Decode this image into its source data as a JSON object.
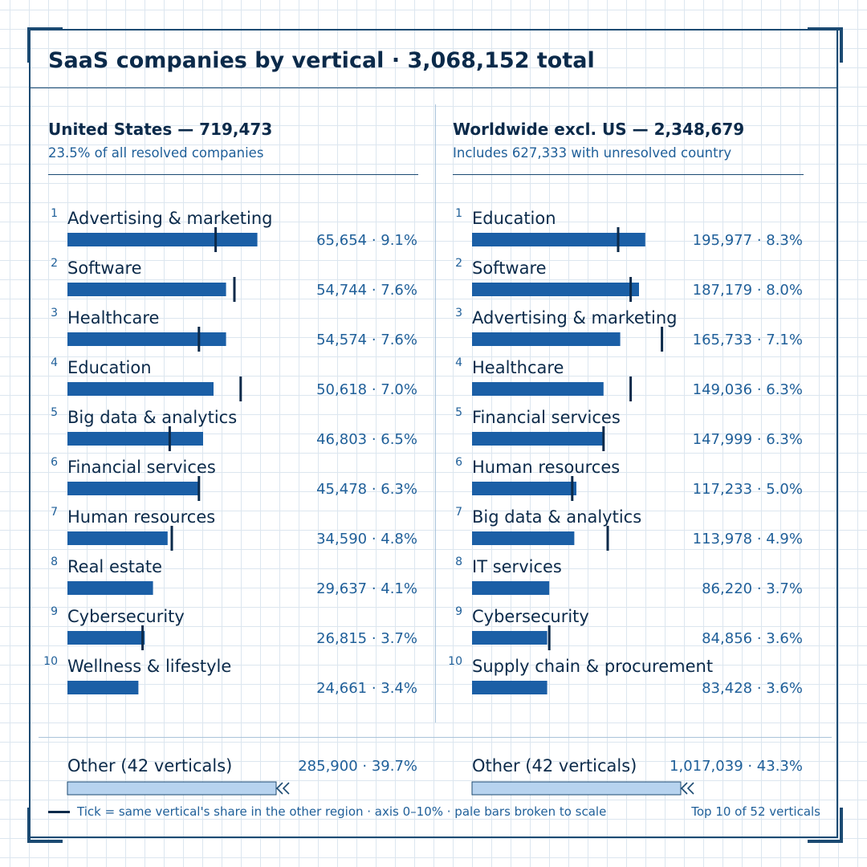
{
  "title": "SaaS companies by vertical · 3,068,152 total",
  "legend": {
    "tick_note": "Tick = same vertical's share in the other region  ·  axis 0–10%  ·  pale bars broken to scale",
    "top_note": "Top 10 of 52 verticals"
  },
  "colors": {
    "bar": "#1b5fa6",
    "other_bar": "#b7d3ef",
    "tick": "#0b2a4a",
    "value_text": "#1f5f99"
  },
  "chart_data": [
    {
      "type": "bar",
      "title": "United States — 719,473",
      "subtitle": "23.5% of all resolved companies",
      "axis_range": [
        0,
        10
      ],
      "ranks": [
        "1",
        "2",
        "3",
        "4",
        "5",
        "6",
        "7",
        "8",
        "9",
        "10"
      ],
      "categories": [
        "Advertising & marketing",
        "Software",
        "Healthcare",
        "Education",
        "Big data & analytics",
        "Financial services",
        "Human resources",
        "Real estate",
        "Cybersecurity",
        "Wellness & lifestyle"
      ],
      "counts": [
        65654,
        54744,
        54574,
        50618,
        46803,
        45478,
        34590,
        29637,
        26815,
        24661
      ],
      "values": [
        9.1,
        7.6,
        7.6,
        7.0,
        6.5,
        6.3,
        4.8,
        4.1,
        3.7,
        3.4
      ],
      "value_labels": [
        "65,654 · 9.1%",
        "54,744 · 7.6%",
        "54,574 · 7.6%",
        "50,618 · 7.0%",
        "46,803 · 6.5%",
        "45,478 · 6.3%",
        "34,590 · 4.8%",
        "29,637 · 4.1%",
        "26,815 · 3.7%",
        "24,661 · 3.4%"
      ],
      "tick_values": [
        7.1,
        8.0,
        6.3,
        8.3,
        4.9,
        6.3,
        5.0,
        null,
        3.6,
        null
      ],
      "other": {
        "label": "Other (42 verticals)",
        "value_label": "285,900 · 39.7%",
        "count": 285900,
        "value": 39.7
      }
    },
    {
      "type": "bar",
      "title": "Worldwide excl. US — 2,348,679",
      "subtitle": "Includes 627,333 with unresolved country",
      "axis_range": [
        0,
        10
      ],
      "ranks": [
        "1",
        "2",
        "3",
        "4",
        "5",
        "6",
        "7",
        "8",
        "9",
        "10"
      ],
      "categories": [
        "Education",
        "Software",
        "Advertising & marketing",
        "Healthcare",
        "Financial services",
        "Human resources",
        "Big data & analytics",
        "IT services",
        "Cybersecurity",
        "Supply chain & procurement"
      ],
      "counts": [
        195977,
        187179,
        165733,
        149036,
        147999,
        117233,
        113978,
        86220,
        84856,
        83428
      ],
      "values": [
        8.3,
        8.0,
        7.1,
        6.3,
        6.3,
        5.0,
        4.9,
        3.7,
        3.6,
        3.6
      ],
      "value_labels": [
        "195,977 · 8.3%",
        "187,179 · 8.0%",
        "165,733 · 7.1%",
        "149,036 · 6.3%",
        "147,999 · 6.3%",
        "117,233 · 5.0%",
        "113,978 · 4.9%",
        "86,220 · 3.7%",
        "84,856 · 3.6%",
        "83,428 · 3.6%"
      ],
      "tick_values": [
        7.0,
        7.6,
        9.1,
        7.6,
        6.3,
        4.8,
        6.5,
        null,
        3.7,
        null
      ],
      "other": {
        "label": "Other (42 verticals)",
        "value_label": "1,017,039 · 43.3%",
        "count": 1017039,
        "value": 43.3
      }
    }
  ]
}
